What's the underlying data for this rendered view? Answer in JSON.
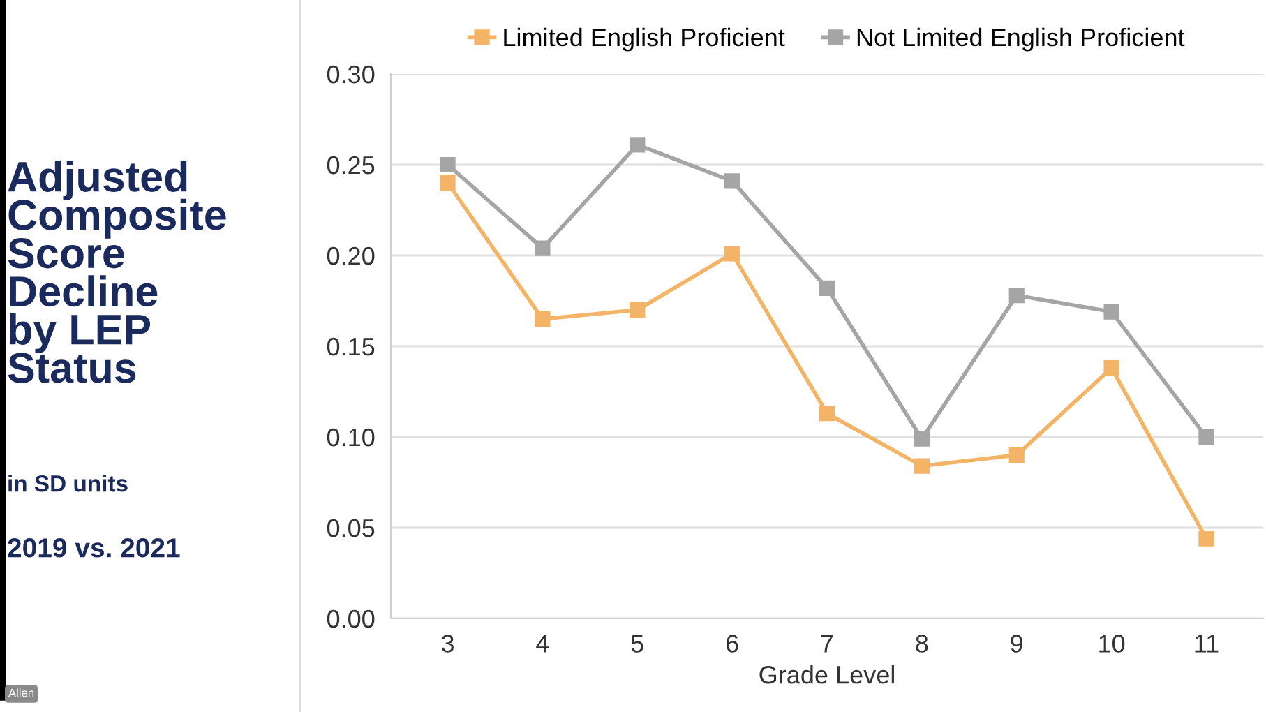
{
  "chart_data": {
    "type": "line",
    "title": "Adjusted\nComposite\nScore\nDecline\nby LEP\nStatus",
    "subtitle": "in SD units",
    "annotations": [
      "2019 vs. 2021",
      "Allen"
    ],
    "xlabel": "Grade Level",
    "categories": [
      "3",
      "4",
      "5",
      "6",
      "7",
      "8",
      "9",
      "10",
      "11"
    ],
    "series": [
      {
        "name": "Limited English Proficient",
        "color": "#f4b467",
        "values": [
          0.24,
          0.165,
          0.17,
          0.201,
          0.113,
          0.084,
          0.09,
          0.138,
          0.044
        ]
      },
      {
        "name": "Not Limited English Proficient",
        "color": "#a5a5a5",
        "values": [
          0.25,
          0.204,
          0.261,
          0.241,
          0.182,
          0.099,
          0.178,
          0.169,
          0.1
        ]
      }
    ],
    "ylim": [
      0,
      0.3
    ],
    "yticks": [
      {
        "value": 0,
        "label": "0.00"
      },
      {
        "value": 0.05,
        "label": "0.05"
      },
      {
        "value": 0.1,
        "label": "0.10"
      },
      {
        "value": 0.15,
        "label": "0.15"
      },
      {
        "value": 0.2,
        "label": "0.20"
      },
      {
        "value": 0.25,
        "label": "0.25"
      },
      {
        "value": 0.3,
        "label": "0.30"
      }
    ],
    "grid": "y",
    "legend": "top",
    "marker": "square",
    "line_style": "solid"
  }
}
